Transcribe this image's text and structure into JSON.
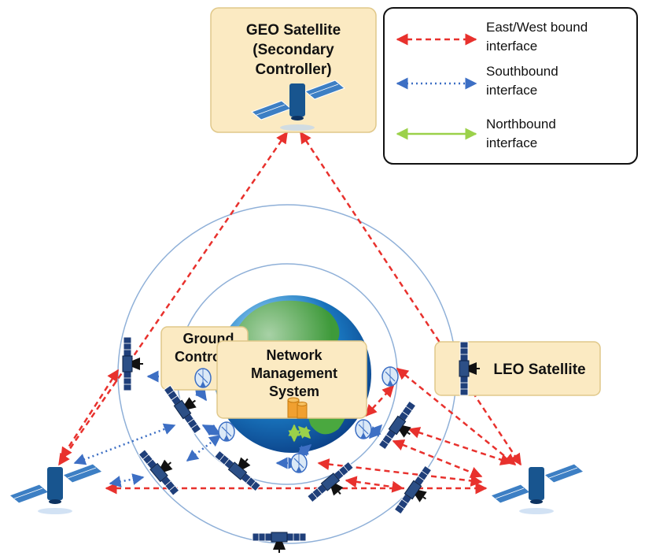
{
  "geo_box": {
    "line1": "GEO Satellite",
    "line2": "(Secondary",
    "line3": "Controller)"
  },
  "ground_box": {
    "line1": "Ground",
    "line2": "Controller"
  },
  "nms_box": {
    "line1": "Network",
    "line2": "Management",
    "line3": "System"
  },
  "leo_box": {
    "label": "LEO Satellite"
  },
  "legend": {
    "items": [
      {
        "line1": "East/West bound",
        "line2": "interface",
        "color": "#e8312d",
        "style": "dashed"
      },
      {
        "line1": "Southbound",
        "line2": "interface",
        "color": "#3d6fc4",
        "style": "dotted"
      },
      {
        "line1": "Northbound",
        "line2": "interface",
        "color": "#9bd14a",
        "style": "solid"
      }
    ]
  },
  "colors": {
    "box_fill": "#fbeac2",
    "box_stroke": "#e0c88a",
    "eastwest": "#e8312d",
    "southbound": "#3d6fc4",
    "northbound": "#9bd14a",
    "orbit": "#8fb0d8",
    "satellite_panel": "#1f3f7a",
    "satellite_body": "#18558f"
  },
  "icons": [
    "geo-satellite-icon",
    "leo-satellite-icon",
    "ground-antenna-icon",
    "database-icon",
    "earth-globe-icon"
  ]
}
